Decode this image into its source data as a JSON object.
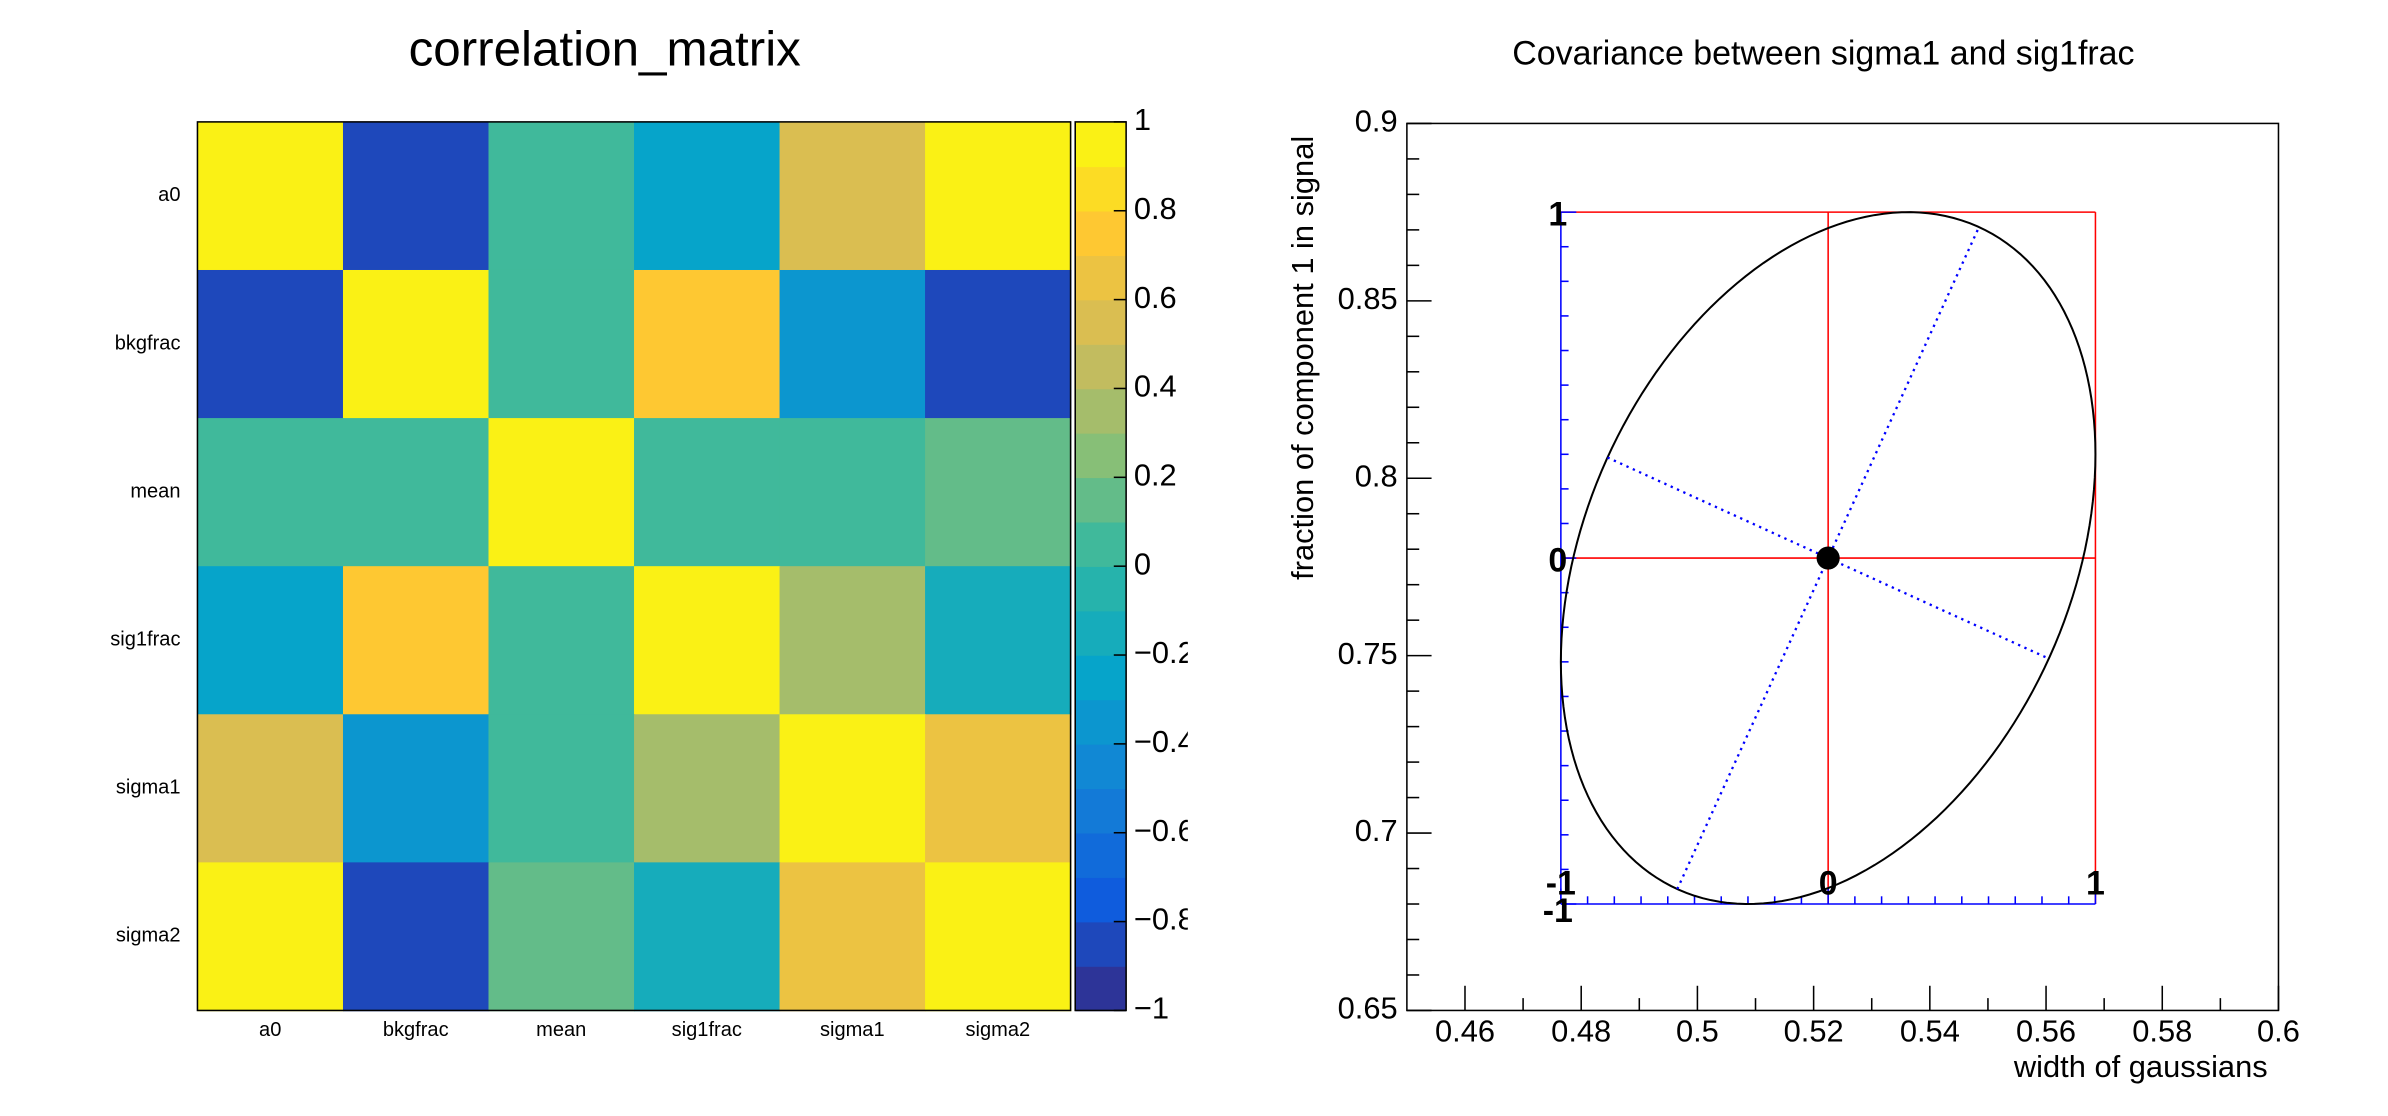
{
  "chart_data": [
    {
      "type": "heatmap",
      "title": "correlation_matrix",
      "categories": [
        "a0",
        "bkgfrac",
        "mean",
        "sig1frac",
        "sigma1",
        "sigma2"
      ],
      "rows": [
        "a0",
        "bkgfrac",
        "mean",
        "sig1frac",
        "sigma1",
        "sigma2"
      ],
      "values": [
        [
          1,
          -0.8,
          0,
          -0.3,
          0.5,
          0.9
        ],
        [
          -0.8,
          1,
          0,
          0.7,
          -0.4,
          -0.8
        ],
        [
          0,
          0,
          1,
          0,
          0,
          0.1
        ],
        [
          -0.3,
          0.7,
          0,
          1,
          0.3,
          -0.2
        ],
        [
          0.5,
          -0.4,
          0,
          0.3,
          1,
          0.6
        ],
        [
          0.9,
          -0.8,
          0.1,
          -0.2,
          0.6,
          1
        ]
      ],
      "zlim": [
        -1,
        1
      ],
      "levels": 20,
      "zticks": [
        1,
        0.8,
        0.6,
        0.4,
        0.2,
        0,
        {
          "value": -0.2,
          "label": "−0.2"
        },
        {
          "value": -0.4,
          "label": "−0.4"
        },
        {
          "value": -0.6,
          "label": "−0.6"
        },
        {
          "value": -0.8,
          "label": "−0.8"
        },
        {
          "value": -1,
          "label": "−1"
        }
      ],
      "palette": [
        "#352a87",
        "#0f5cdd",
        "#1481d6",
        "#06a4ca",
        "#2eb7a4",
        "#87bf77",
        "#d1bb59",
        "#fec832",
        "#f9fb0e"
      ]
    },
    {
      "type": "covariance",
      "title": "Covariance between sigma1 and sig1frac",
      "xlabel": "width of gaussians",
      "ylabel": "fraction of component 1 in signal",
      "xlim": [
        0.45,
        0.6
      ],
      "xticks": [
        0.46,
        0.48,
        0.5,
        0.52,
        0.54,
        0.56,
        0.58,
        0.6
      ],
      "ylim": [
        0.65,
        0.9
      ],
      "yticks": [
        0.65,
        0.7,
        0.75,
        0.8,
        0.85,
        0.9
      ],
      "point": {
        "x": 0.5225,
        "y": 0.7775
      },
      "sigma_x": 0.046,
      "sigma_y": 0.0975,
      "correlation": 0.3,
      "inner_ticks": [
        -1,
        0,
        1
      ],
      "ellipse_color": "#000000",
      "box_color": "#ff0000",
      "inner_axis_color": "#0000ff",
      "axes_color": "#0000ff"
    }
  ]
}
